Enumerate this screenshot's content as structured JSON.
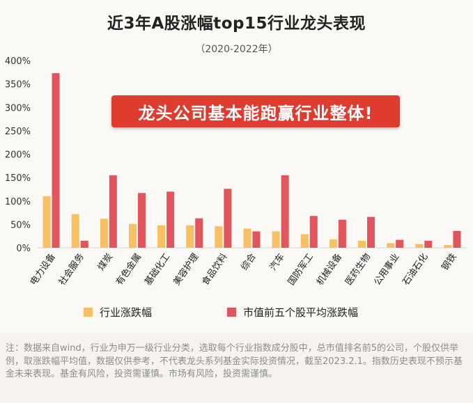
{
  "title": "近3年A股涨幅top15行业龙头表现",
  "subtitle": "（2020-2022年）",
  "callout": "龙头公司基本能跑赢行业整体!",
  "note": "注：数据来自wind，行业为申万一级行业分类，选取每个行业指数成分股中，总市值排名前5的公司，个股仅供举例，取涨跌幅平均值，数据仅供参考，不代表龙头系列基金实际投资情况，截至2023.2.1。指数历史表现不预示基金未来表现。基金有风险，投资需谨慎。市场有风险，投资需谨慎。",
  "colors": {
    "industry": "#f7c063",
    "leaders": "#e1555c",
    "callout_bg": "#de3c2e",
    "title_highlight": "#f6c992"
  },
  "chart_data": {
    "type": "bar",
    "categories": [
      "电力设备",
      "社会服务",
      "煤炭",
      "有色金属",
      "基础化工",
      "美容护理",
      "食品饮料",
      "综合",
      "汽车",
      "国防军工",
      "机械设备",
      "医药生物",
      "公用事业",
      "石油石化",
      "钢铁"
    ],
    "series": [
      {
        "name": "行业涨跌幅",
        "values": [
          110,
          72,
          62,
          51,
          48,
          48,
          46,
          41,
          35,
          29,
          18,
          15,
          10,
          8,
          6
        ]
      },
      {
        "name": "市值前五个股平均涨跌幅",
        "values": [
          373,
          15,
          155,
          117,
          120,
          63,
          126,
          35,
          155,
          68,
          60,
          66,
          17,
          15,
          36
        ]
      }
    ],
    "ylim": [
      0,
      400
    ],
    "yticks": [
      "0%",
      "50%",
      "100%",
      "150%",
      "200%",
      "250%",
      "300%",
      "350%",
      "400%"
    ],
    "legend_position": "bottom"
  }
}
